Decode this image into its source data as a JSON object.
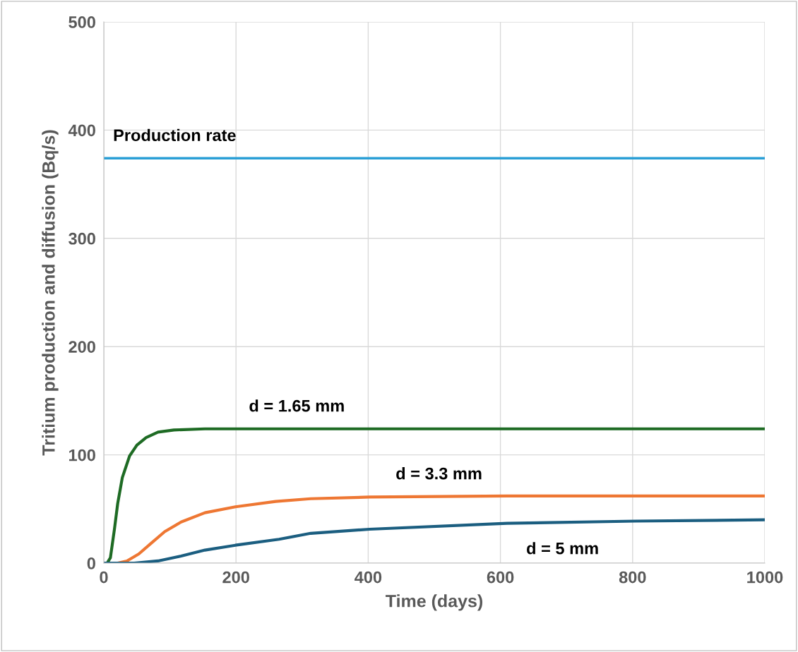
{
  "chart_data": {
    "type": "line",
    "xlabel": "Time (days)",
    "ylabel": "Tritium production and diffusion (Bq/s)",
    "xlim": [
      0,
      1000
    ],
    "ylim": [
      0,
      500
    ],
    "xticks": [
      0,
      200,
      400,
      600,
      800,
      1000
    ],
    "yticks": [
      0,
      100,
      200,
      300,
      400,
      500
    ],
    "grid": true,
    "marker": "none",
    "line_style": "solid",
    "series": [
      {
        "name": "Production rate",
        "color": "#2a9fd6",
        "x": [
          0,
          1000
        ],
        "values": [
          374,
          374
        ]
      },
      {
        "name": "d = 1.65 mm",
        "color": "#1e6b24",
        "x": [
          0,
          5,
          10,
          16,
          21,
          28,
          39,
          50,
          64,
          82,
          106,
          153,
          300,
          1000
        ],
        "values": [
          0,
          0,
          5,
          31,
          55,
          79,
          99,
          109,
          116,
          121,
          123,
          124,
          124,
          124
        ]
      },
      {
        "name": "d = 3.3 mm",
        "color": "#ee7733",
        "x": [
          0,
          21,
          35,
          53,
          71,
          92,
          117,
          153,
          199,
          260,
          313,
          402,
          610,
          1000
        ],
        "values": [
          0,
          0,
          2,
          8.5,
          18,
          29,
          38,
          46.5,
          52,
          57,
          59.5,
          61,
          62,
          62
        ]
      },
      {
        "name": "d = 5 mm",
        "color": "#1b5e80",
        "x": [
          0,
          46,
          82,
          117,
          153,
          199,
          265,
          313,
          402,
          610,
          804,
          1000
        ],
        "values": [
          0,
          0,
          2,
          6.5,
          12,
          16.5,
          22,
          27.5,
          31.3,
          36.7,
          38.8,
          40
        ]
      }
    ]
  }
}
